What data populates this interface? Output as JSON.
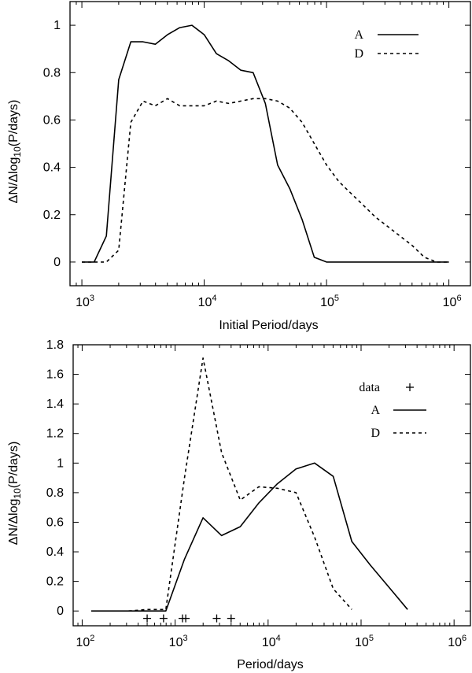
{
  "chart_data": [
    {
      "type": "line",
      "xscale": "log10",
      "xlim": [
        800,
        1500000
      ],
      "ylim": [
        -0.1,
        1.1
      ],
      "xticks": [
        1000,
        10000,
        100000,
        1000000
      ],
      "xtick_labels": [
        {
          "base": "10",
          "exp": "3"
        },
        {
          "base": "10",
          "exp": "4"
        },
        {
          "base": "10",
          "exp": "5"
        },
        {
          "base": "10",
          "exp": "6"
        }
      ],
      "yticks": [
        0,
        0.2,
        0.4,
        0.6,
        0.8,
        1
      ],
      "ytick_labels": [
        "0",
        "0.2",
        "0.4",
        "0.6",
        "0.8",
        "1"
      ],
      "xlabel": "Initial Period/days",
      "ylabel": {
        "prefix": "ΔN/Δlog",
        "sub": "10",
        "suffix": "(P/days)"
      },
      "legend_position": "top-right",
      "series": [
        {
          "name": "A",
          "style": "solid",
          "x": [
            1000,
            1260,
            1585,
            2000,
            2512,
            3162,
            3981,
            5012,
            6310,
            7943,
            10000,
            12589,
            15849,
            19953,
            25119,
            31623,
            39811,
            50119,
            63096,
            79433,
            100000,
            125893,
            158489,
            199526,
            251189,
            316228,
            398107,
            501187,
            630957,
            794328,
            1000000
          ],
          "y": [
            0,
            0,
            0.11,
            0.77,
            0.93,
            0.93,
            0.92,
            0.96,
            0.99,
            1.0,
            0.96,
            0.88,
            0.85,
            0.81,
            0.8,
            0.67,
            0.41,
            0.31,
            0.18,
            0.02,
            0,
            0,
            0,
            0,
            0,
            0,
            0,
            0,
            0,
            0,
            0
          ]
        },
        {
          "name": "D",
          "style": "dashed",
          "x": [
            1000,
            1260,
            1585,
            2000,
            2512,
            3162,
            3981,
            5012,
            6310,
            7943,
            10000,
            12589,
            15849,
            19953,
            25119,
            31623,
            39811,
            50119,
            63096,
            79433,
            100000,
            125893,
            158489,
            199526,
            251189,
            316228,
            398107,
            501187,
            630957,
            794328,
            1000000
          ],
          "y": [
            0,
            0,
            0,
            0.05,
            0.59,
            0.68,
            0.66,
            0.69,
            0.66,
            0.66,
            0.66,
            0.68,
            0.67,
            0.68,
            0.69,
            0.69,
            0.68,
            0.65,
            0.59,
            0.5,
            0.41,
            0.34,
            0.29,
            0.24,
            0.19,
            0.15,
            0.11,
            0.07,
            0.02,
            0,
            0
          ]
        }
      ]
    },
    {
      "type": "line",
      "xscale": "log10",
      "xlim": [
        80,
        1500000
      ],
      "ylim": [
        -0.1,
        1.8
      ],
      "xticks": [
        100,
        1000,
        10000,
        100000,
        1000000
      ],
      "xtick_labels": [
        {
          "base": "10",
          "exp": "2"
        },
        {
          "base": "10",
          "exp": "3"
        },
        {
          "base": "10",
          "exp": "4"
        },
        {
          "base": "10",
          "exp": "5"
        },
        {
          "base": "10",
          "exp": "6"
        }
      ],
      "yticks": [
        0,
        0.2,
        0.4,
        0.6,
        0.8,
        1,
        1.2,
        1.4,
        1.6,
        1.8
      ],
      "ytick_labels": [
        "0",
        "0.2",
        "0.4",
        "0.6",
        "0.8",
        "1",
        "1.2",
        "1.4",
        "1.6",
        "1.8"
      ],
      "xlabel": "Period/days",
      "ylabel": {
        "prefix": "ΔN/Δlog",
        "sub": "10",
        "suffix": "(P/days)"
      },
      "legend_position": "top-right",
      "series": [
        {
          "name": "A",
          "style": "solid",
          "x": [
            125,
            200,
            316,
            500,
            794,
            1259,
            1995,
            3162,
            5012,
            7943,
            12589,
            19953,
            31623,
            50119,
            79433,
            125893,
            199526,
            316228
          ],
          "y": [
            0,
            0,
            0,
            0,
            0,
            0.35,
            0.63,
            0.51,
            0.57,
            0.73,
            0.86,
            0.96,
            1.0,
            0.91,
            0.47,
            0.31,
            0.16,
            0.01
          ]
        },
        {
          "name": "D",
          "style": "dashed",
          "x": [
            316,
            500,
            794,
            1259,
            1995,
            3162,
            5012,
            7943,
            12589,
            19953,
            31623,
            50119,
            79433
          ],
          "y": [
            0,
            0.01,
            0.01,
            0.9,
            1.71,
            1.07,
            0.75,
            0.84,
            0.83,
            0.8,
            0.5,
            0.15,
            0.01
          ]
        },
        {
          "name": "data",
          "style": "plus",
          "x": [
            500,
            750,
            1200,
            1300,
            2800,
            4000
          ],
          "y": [
            -0.05,
            -0.05,
            -0.05,
            -0.05,
            -0.05,
            -0.05
          ]
        }
      ]
    }
  ]
}
